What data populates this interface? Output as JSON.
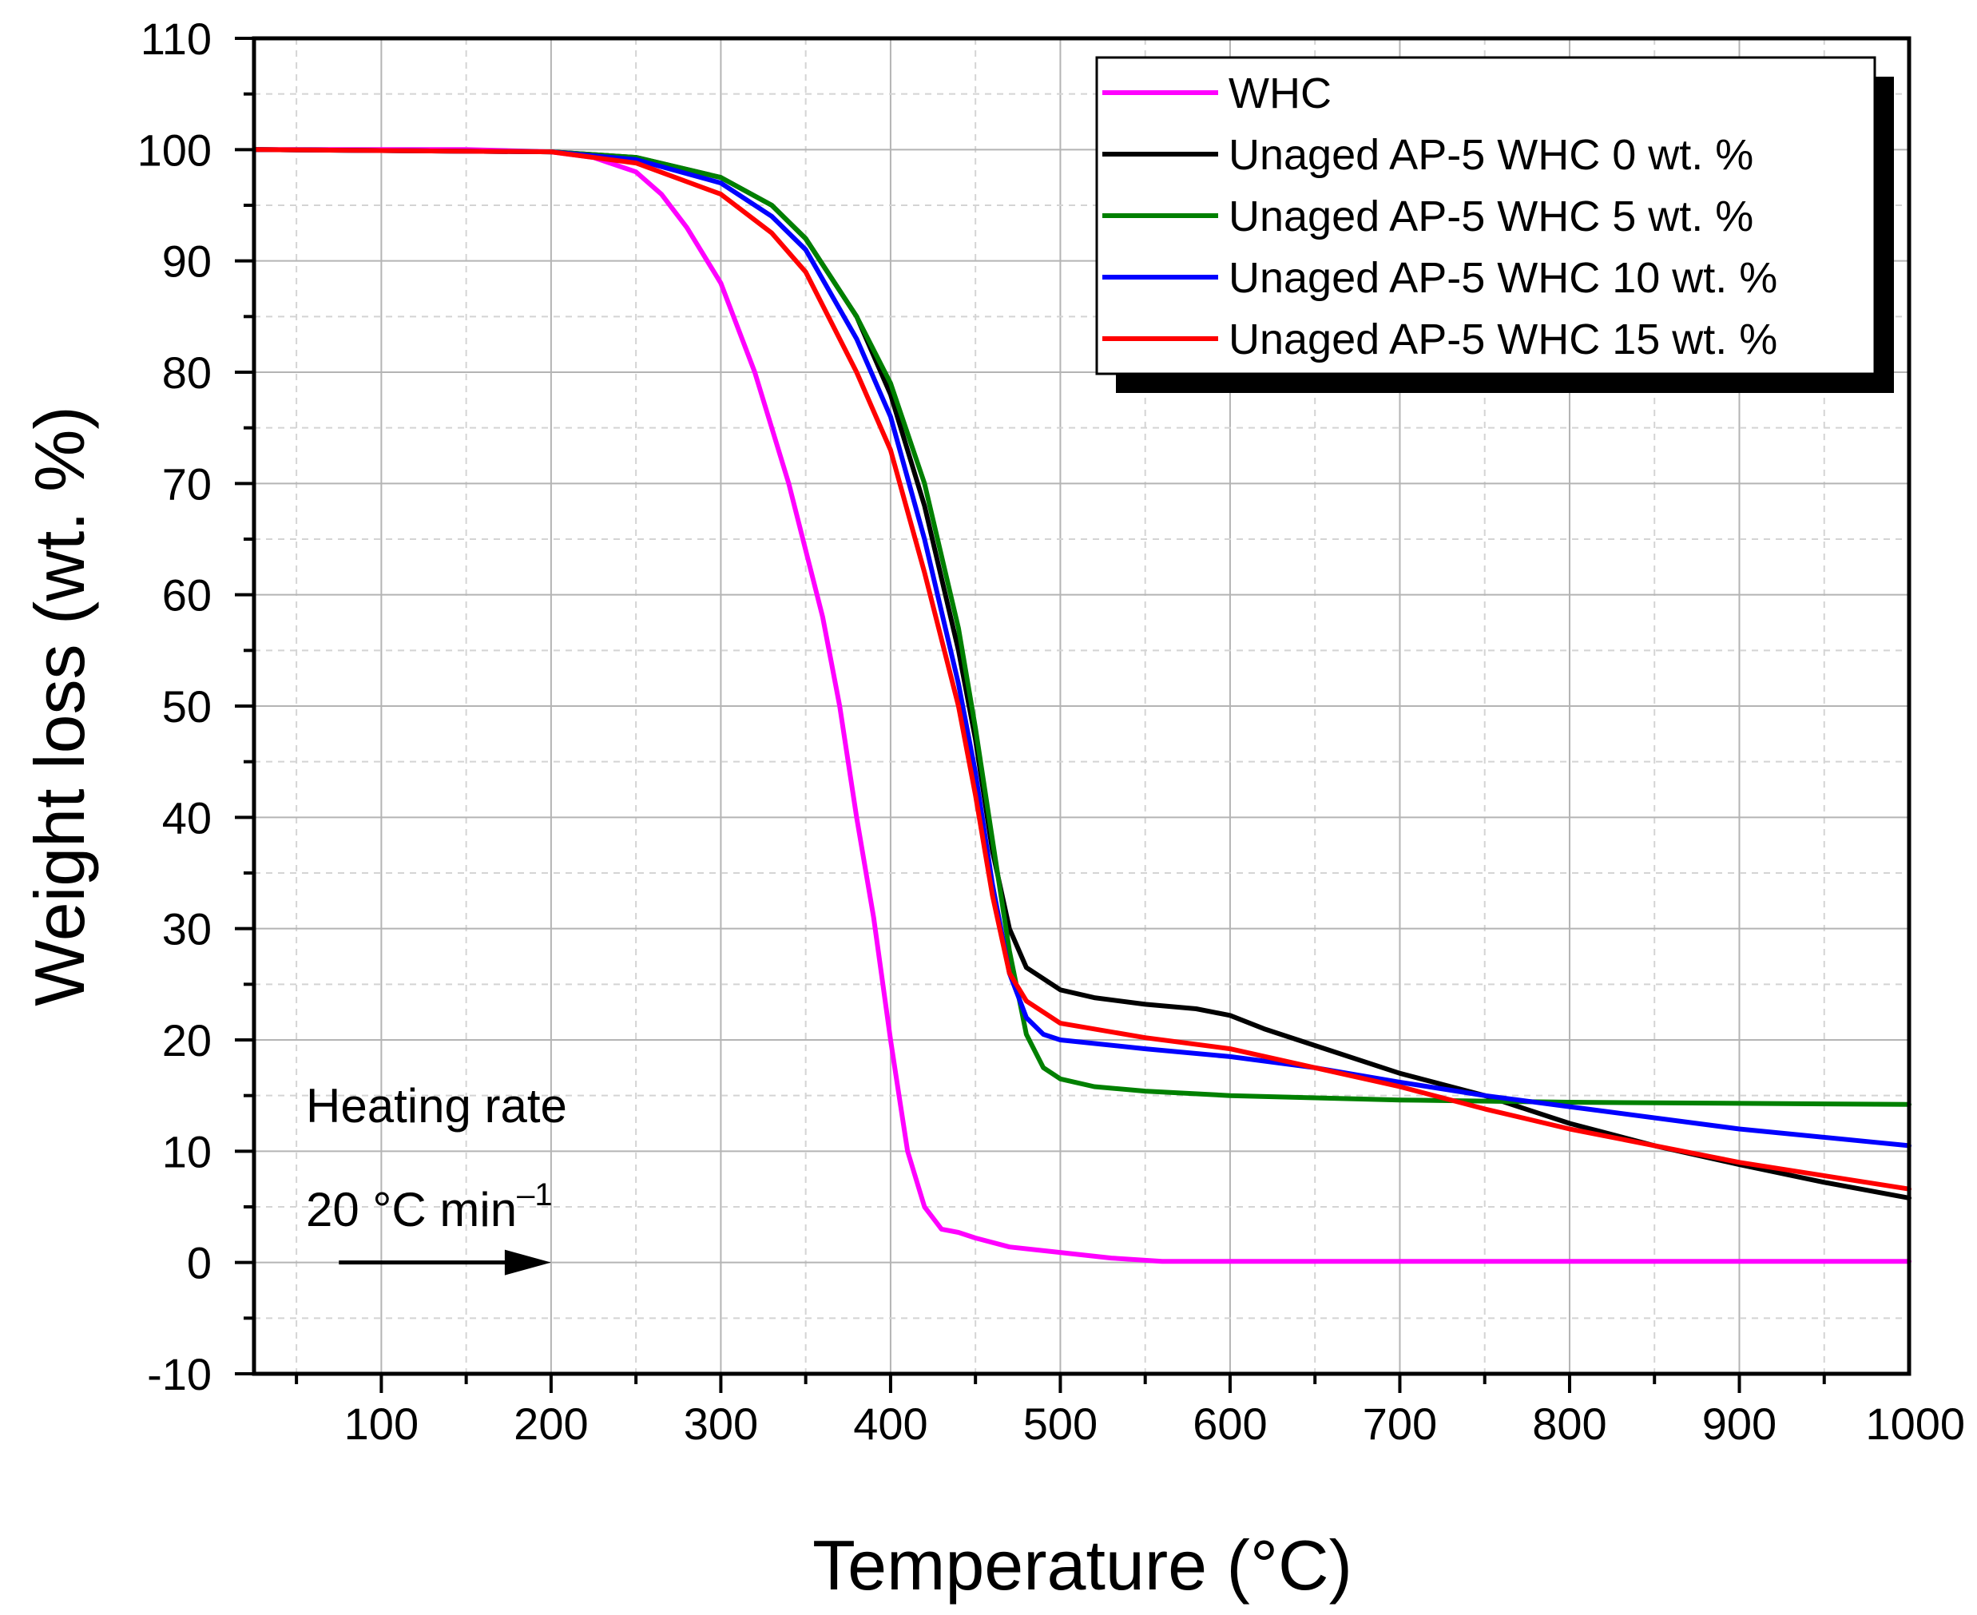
{
  "chart_data": {
    "type": "line",
    "title": "",
    "xlabel": "Temperature (°C)",
    "ylabel": "Weight loss (wt. %)",
    "xlim": [
      25,
      1000
    ],
    "ylim": [
      -10,
      110
    ],
    "xticks": [
      100,
      200,
      300,
      400,
      500,
      600,
      700,
      800,
      900,
      1000
    ],
    "xtick_labels": [
      "100",
      "200",
      "300",
      "400",
      "500",
      "600",
      "700",
      "800",
      "900",
      "1000"
    ],
    "yticks": [
      -10,
      0,
      10,
      20,
      30,
      40,
      50,
      60,
      70,
      80,
      90,
      100,
      110
    ],
    "ytick_labels": [
      "-10",
      "0",
      "10",
      "20",
      "30",
      "40",
      "50",
      "60",
      "70",
      "80",
      "90",
      "100",
      "110"
    ],
    "grid": true,
    "legend_position": "top-right",
    "annotation": {
      "line1": "Heating rate",
      "line2": "20 °C min",
      "superscript": "–1",
      "arrow_from_x": 75,
      "arrow_to_x": 200,
      "arrow_y": 0
    },
    "series": [
      {
        "name": "WHC",
        "color": "#FF00FF",
        "x": [
          25,
          150,
          200,
          225,
          250,
          265,
          280,
          300,
          320,
          340,
          360,
          370,
          380,
          390,
          400,
          405,
          410,
          420,
          430,
          440,
          450,
          470,
          500,
          530,
          560,
          600,
          700,
          800,
          900,
          1000
        ],
        "y": [
          100,
          100,
          99.8,
          99.3,
          98,
          96,
          93,
          88,
          80,
          70,
          58,
          50,
          40,
          31,
          20,
          15,
          10,
          5,
          3,
          2.7,
          2.2,
          1.4,
          0.9,
          0.4,
          0.1,
          0.1,
          0.1,
          0.1,
          0.1,
          0.1
        ]
      },
      {
        "name": "Unaged AP-5 WHC 0 wt. %",
        "color": "#000000",
        "x": [
          25,
          200,
          250,
          300,
          330,
          350,
          380,
          400,
          420,
          440,
          450,
          460,
          470,
          480,
          500,
          520,
          550,
          580,
          600,
          620,
          650,
          700,
          750,
          800,
          850,
          900,
          950,
          1000
        ],
        "y": [
          100,
          99.8,
          99.3,
          97.5,
          95,
          92,
          85,
          78,
          68,
          55,
          47,
          37,
          30,
          26.5,
          24.5,
          23.8,
          23.2,
          22.8,
          22.2,
          21,
          19.5,
          17,
          15,
          12.5,
          10.5,
          8.8,
          7.2,
          5.8
        ]
      },
      {
        "name": "Unaged AP-5 WHC 5 wt. %",
        "color": "#008000",
        "x": [
          25,
          200,
          250,
          300,
          330,
          350,
          380,
          400,
          420,
          440,
          450,
          460,
          470,
          480,
          490,
          500,
          520,
          550,
          600,
          650,
          700,
          750,
          800,
          900,
          1000
        ],
        "y": [
          100,
          99.8,
          99.3,
          97.5,
          95,
          92,
          85,
          79,
          70,
          57,
          48,
          38,
          28,
          20.5,
          17.5,
          16.5,
          15.8,
          15.4,
          15,
          14.8,
          14.6,
          14.5,
          14.4,
          14.3,
          14.2
        ]
      },
      {
        "name": "Unaged AP-5 WHC 10 wt. %",
        "color": "#0000FF",
        "x": [
          25,
          200,
          250,
          300,
          330,
          350,
          380,
          400,
          420,
          440,
          450,
          460,
          470,
          480,
          490,
          500,
          550,
          600,
          650,
          700,
          750,
          800,
          900,
          980,
          1000
        ],
        "y": [
          100,
          99.8,
          99.1,
          97,
          94,
          91,
          83,
          76,
          65,
          52,
          44,
          34,
          26,
          22,
          20.5,
          20,
          19.2,
          18.5,
          17.5,
          16.2,
          15,
          14,
          12,
          10.8,
          10.5
        ]
      },
      {
        "name": "Unaged AP-5 WHC 15 wt. %",
        "color": "#FF0000",
        "x": [
          25,
          200,
          250,
          300,
          330,
          350,
          380,
          400,
          420,
          440,
          450,
          460,
          470,
          480,
          500,
          550,
          600,
          650,
          700,
          750,
          800,
          900,
          1000
        ],
        "y": [
          100,
          99.8,
          98.8,
          96,
          92.5,
          89,
          80,
          73,
          62,
          50,
          42,
          33,
          26,
          23.5,
          21.5,
          20.2,
          19.2,
          17.5,
          15.8,
          13.8,
          12,
          9,
          6.6
        ]
      }
    ]
  }
}
